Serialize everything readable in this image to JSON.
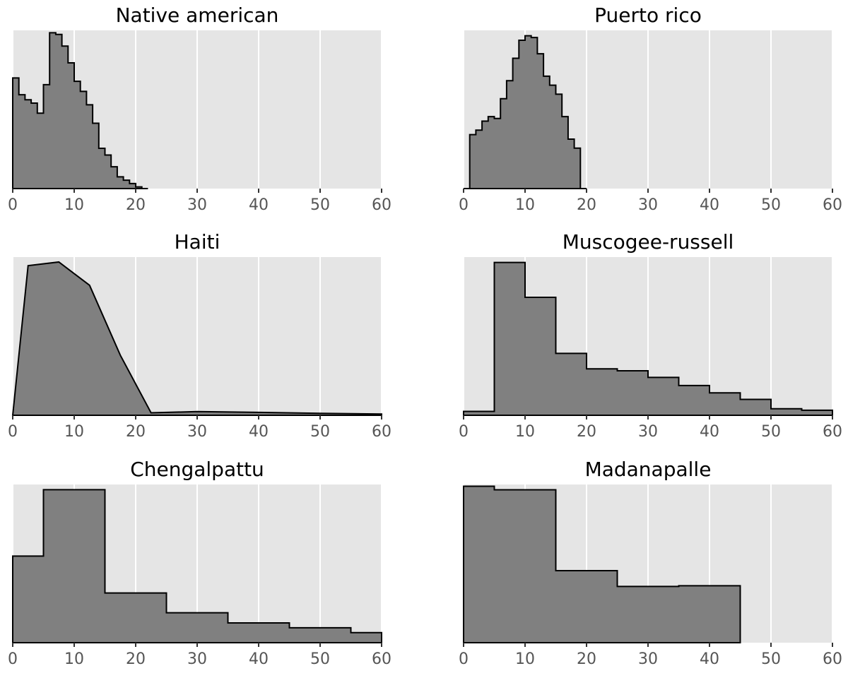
{
  "chart_data": [
    {
      "type": "area",
      "title": "Native american",
      "style": "step",
      "xlim": [
        0,
        60
      ],
      "ylim": [
        0,
        0.0944
      ],
      "xticks": [
        0,
        10,
        20,
        30,
        40,
        50,
        60
      ],
      "grid": true,
      "fill_color": "#808080",
      "bin_width": 1,
      "x": [
        0,
        1,
        2,
        3,
        4,
        5,
        6,
        7,
        8,
        9,
        10,
        11,
        12,
        13,
        14,
        15,
        16,
        17,
        18,
        19,
        20,
        21
      ],
      "values": [
        0.066,
        0.056,
        0.053,
        0.051,
        0.045,
        0.062,
        0.093,
        0.092,
        0.085,
        0.075,
        0.064,
        0.058,
        0.05,
        0.039,
        0.024,
        0.02,
        0.013,
        0.007,
        0.005,
        0.003,
        0.001,
        0.0
      ]
    },
    {
      "type": "area",
      "title": "Puerto rico",
      "style": "step",
      "xlim": [
        0,
        60
      ],
      "ylim": [
        0,
        0.176
      ],
      "xticks": [
        0,
        10,
        20,
        30,
        40,
        50,
        60
      ],
      "grid": true,
      "fill_color": "#808080",
      "bin_width": 1,
      "x": [
        0,
        1,
        2,
        3,
        4,
        5,
        6,
        7,
        8,
        9,
        10,
        11,
        12,
        13,
        14,
        15,
        16,
        17,
        18,
        19
      ],
      "values": [
        0.0,
        0.06,
        0.065,
        0.075,
        0.08,
        0.078,
        0.1,
        0.12,
        0.145,
        0.165,
        0.17,
        0.168,
        0.15,
        0.125,
        0.115,
        0.105,
        0.08,
        0.055,
        0.045,
        0.0
      ]
    },
    {
      "type": "area",
      "title": "Haiti",
      "style": "line",
      "xlim": [
        0,
        60
      ],
      "ylim": [
        0,
        0.0645
      ],
      "xticks": [
        0,
        10,
        20,
        30,
        40,
        50,
        60
      ],
      "grid": true,
      "fill_color": "#808080",
      "x": [
        0,
        2.5,
        7.5,
        12.5,
        17.5,
        22.5,
        30,
        40,
        50,
        60
      ],
      "values": [
        0.0,
        0.061,
        0.0625,
        0.053,
        0.0245,
        0.001,
        0.0015,
        0.0012,
        0.0008,
        0.0005
      ]
    },
    {
      "type": "area",
      "title": "Muscogee-russell",
      "style": "step",
      "xlim": [
        0,
        60
      ],
      "ylim": [
        0,
        0.0409
      ],
      "xticks": [
        0,
        10,
        20,
        30,
        40,
        50,
        60
      ],
      "grid": true,
      "fill_color": "#808080",
      "bin_width": 5,
      "x": [
        0,
        5,
        10,
        15,
        20,
        25,
        30,
        35,
        40,
        45,
        50,
        55
      ],
      "values": [
        0.001,
        0.0395,
        0.0305,
        0.016,
        0.012,
        0.0115,
        0.0098,
        0.0077,
        0.0058,
        0.0041,
        0.0017,
        0.0013
      ]
    },
    {
      "type": "area",
      "title": "Chengalpattu",
      "style": "step",
      "xlim": [
        0,
        60
      ],
      "ylim": [
        0,
        0.0455
      ],
      "xticks": [
        0,
        10,
        20,
        30,
        40,
        50,
        60
      ],
      "grid": true,
      "fill_color": "#808080",
      "bin_width": 5,
      "x": [
        0,
        5,
        15,
        25,
        35,
        45,
        55
      ],
      "widths": [
        5,
        10,
        10,
        10,
        10,
        10,
        5
      ],
      "values": [
        0.0249,
        0.044,
        0.0143,
        0.0086,
        0.0057,
        0.0043,
        0.0029
      ]
    },
    {
      "type": "area",
      "title": "Madanapalle",
      "style": "step",
      "xlim": [
        0,
        60
      ],
      "ylim": [
        0,
        0.045
      ],
      "xticks": [
        0,
        10,
        20,
        30,
        40,
        50,
        60
      ],
      "grid": true,
      "fill_color": "#808080",
      "bin_width": 10,
      "x": [
        0,
        5,
        15,
        25,
        35
      ],
      "widths": [
        5,
        10,
        10,
        10,
        10
      ],
      "values": [
        0.0445,
        0.0435,
        0.0205,
        0.016,
        0.0162
      ]
    }
  ]
}
